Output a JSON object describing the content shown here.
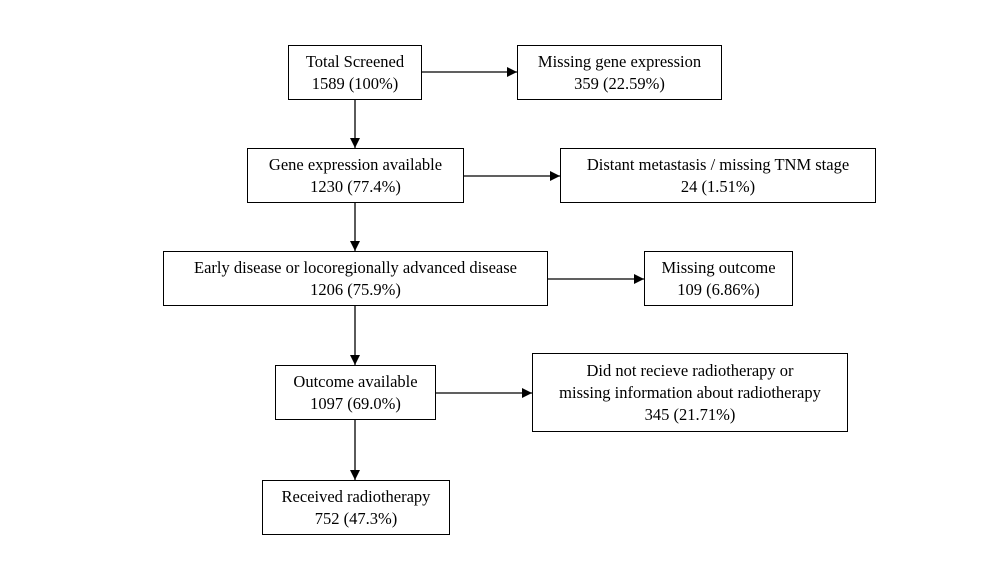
{
  "nodes": {
    "total_screened": {
      "lines": [
        "Total Screened",
        "1589 (100%)"
      ]
    },
    "missing_gene": {
      "lines": [
        "Missing gene expression",
        "359 (22.59%)"
      ]
    },
    "gene_available": {
      "lines": [
        "Gene expression available",
        "1230 (77.4%)"
      ]
    },
    "distant_mets": {
      "lines": [
        "Distant metastasis / missing TNM stage",
        "24 (1.51%)"
      ]
    },
    "early_disease": {
      "lines": [
        "Early disease or locoregionally advanced disease",
        "1206 (75.9%)"
      ]
    },
    "missing_outcome": {
      "lines": [
        "Missing outcome",
        "109 (6.86%)"
      ]
    },
    "outcome_available": {
      "lines": [
        "Outcome available",
        "1097 (69.0%)"
      ]
    },
    "no_radiotherapy": {
      "lines": [
        "Did not recieve radiotherapy or",
        "missing information about radiotherapy",
        "345 (21.71%)"
      ]
    },
    "received_rt": {
      "lines": [
        "Received radiotherapy",
        "752 (47.3%)"
      ]
    }
  },
  "edges": [
    {
      "from": "total_screened",
      "to": "missing_gene"
    },
    {
      "from": "total_screened",
      "to": "gene_available"
    },
    {
      "from": "gene_available",
      "to": "distant_mets"
    },
    {
      "from": "gene_available",
      "to": "early_disease"
    },
    {
      "from": "early_disease",
      "to": "missing_outcome"
    },
    {
      "from": "early_disease",
      "to": "outcome_available"
    },
    {
      "from": "outcome_available",
      "to": "no_radiotherapy"
    },
    {
      "from": "outcome_available",
      "to": "received_rt"
    }
  ]
}
